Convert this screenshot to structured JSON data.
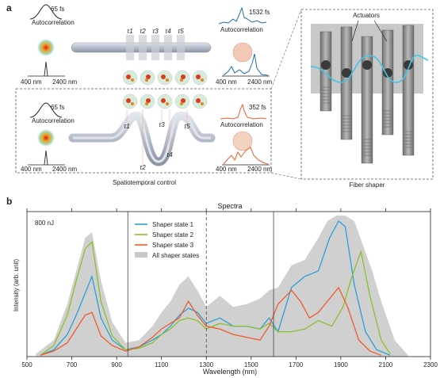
{
  "panel_a": {
    "label": "a",
    "top_row": {
      "pulse_width_in": "65 fs",
      "autocorr_in": "Autocorrelation",
      "lambda_start": "400 nm",
      "lambda_end": "2400 nm",
      "taus": [
        "τ1",
        "τ2",
        "τ3",
        "τ4",
        "τ5"
      ],
      "pulse_width_out": "1532 fs",
      "autocorr_out": "Autocorrelation",
      "out_lambda_start": "400 nm",
      "out_lambda_end": "2400 nm"
    },
    "bottom_row": {
      "pulse_width_in": "65 fs",
      "autocorr_in": "Autocorrelation",
      "lambda_start": "400 nm",
      "lambda_end": "2400 nm",
      "taus": [
        "τ1",
        "τ2",
        "τ3",
        "τ4",
        "τ5"
      ],
      "pulse_width_out": "352 fs",
      "autocorr_out": "Autocorrelation",
      "out_lambda_start": "400 nm",
      "out_lambda_end": "2400 nm"
    },
    "caption_left": "Spatiotemporal control",
    "actuators_label": "Actuators",
    "caption_right": "Fiber shaper"
  },
  "panel_b": {
    "label": "b",
    "energy": "800 nJ",
    "chart_data": {
      "type": "area",
      "title": "Spectra",
      "xlabel": "Wavelength (nm)",
      "ylabel": "Intensity (arb. unit)",
      "xlim": [
        500,
        2300
      ],
      "x_ticks": [
        "500",
        "700",
        "900",
        "1100",
        "1300",
        "1500",
        "1700",
        "1900",
        "2100",
        "2300"
      ],
      "grid": false,
      "legend_position": "upper-center",
      "series": [
        {
          "name": "Shaper state 1",
          "color": "#2a9fd8",
          "x": [
            560,
            620,
            680,
            720,
            760,
            790,
            830,
            880,
            940,
            1000,
            1060,
            1100,
            1140,
            1180,
            1220,
            1260,
            1300,
            1360,
            1420,
            1480,
            1540,
            1580,
            1620,
            1680,
            1740,
            1800,
            1850,
            1890,
            1920,
            1960,
            2010,
            2060,
            2120
          ],
          "y": [
            0.01,
            0.05,
            0.16,
            0.3,
            0.46,
            0.58,
            0.28,
            0.12,
            0.05,
            0.07,
            0.12,
            0.16,
            0.22,
            0.3,
            0.35,
            0.32,
            0.24,
            0.28,
            0.22,
            0.22,
            0.2,
            0.28,
            0.18,
            0.5,
            0.58,
            0.62,
            0.86,
            0.98,
            0.94,
            0.52,
            0.18,
            0.05,
            0.01
          ]
        },
        {
          "name": "Shaper state 2",
          "color": "#8bbf2e",
          "x": [
            560,
            620,
            680,
            720,
            760,
            790,
            830,
            880,
            940,
            1000,
            1060,
            1100,
            1140,
            1180,
            1220,
            1260,
            1300,
            1360,
            1420,
            1480,
            1540,
            1580,
            1620,
            1680,
            1740,
            1800,
            1860,
            1910,
            1950,
            1990,
            2030,
            2080,
            2120
          ],
          "y": [
            0.01,
            0.08,
            0.3,
            0.55,
            0.78,
            0.83,
            0.4,
            0.15,
            0.05,
            0.06,
            0.1,
            0.16,
            0.2,
            0.26,
            0.28,
            0.26,
            0.2,
            0.24,
            0.22,
            0.22,
            0.2,
            0.24,
            0.18,
            0.18,
            0.2,
            0.26,
            0.22,
            0.36,
            0.58,
            0.76,
            0.44,
            0.12,
            0.02
          ]
        },
        {
          "name": "Shaper state 3",
          "color": "#ef5b2b",
          "x": [
            560,
            620,
            680,
            720,
            760,
            790,
            830,
            880,
            940,
            1000,
            1060,
            1100,
            1140,
            1180,
            1220,
            1260,
            1300,
            1360,
            1420,
            1480,
            1540,
            1580,
            1620,
            1680,
            1720,
            1760,
            1800,
            1850,
            1890,
            1930,
            1980,
            2030,
            2080
          ],
          "y": [
            0.01,
            0.04,
            0.1,
            0.2,
            0.3,
            0.32,
            0.15,
            0.08,
            0.04,
            0.07,
            0.14,
            0.2,
            0.24,
            0.28,
            0.4,
            0.3,
            0.22,
            0.2,
            0.16,
            0.14,
            0.12,
            0.22,
            0.38,
            0.48,
            0.4,
            0.28,
            0.32,
            0.42,
            0.5,
            0.36,
            0.12,
            0.04,
            0.01
          ]
        },
        {
          "name": "All shaper states",
          "color": "#c8c8c8",
          "x": [
            540,
            620,
            680,
            720,
            760,
            790,
            830,
            880,
            940,
            1000,
            1060,
            1100,
            1140,
            1180,
            1220,
            1260,
            1300,
            1360,
            1420,
            1480,
            1540,
            1580,
            1620,
            1680,
            1740,
            1800,
            1840,
            1880,
            1920,
            1960,
            2000,
            2040,
            2080,
            2140,
            2200
          ],
          "y": [
            0.02,
            0.12,
            0.38,
            0.62,
            0.86,
            0.9,
            0.55,
            0.25,
            0.1,
            0.12,
            0.22,
            0.32,
            0.4,
            0.52,
            0.58,
            0.48,
            0.36,
            0.44,
            0.36,
            0.38,
            0.42,
            0.48,
            0.5,
            0.66,
            0.7,
            0.86,
            0.98,
            1.02,
            1.02,
            0.98,
            0.8,
            0.62,
            0.4,
            0.12,
            0.01
          ]
        }
      ],
      "vertical_lines": [
        950,
        1300,
        1600
      ],
      "vertical_line_styles": [
        "solid",
        "dashed",
        "solid"
      ]
    }
  }
}
